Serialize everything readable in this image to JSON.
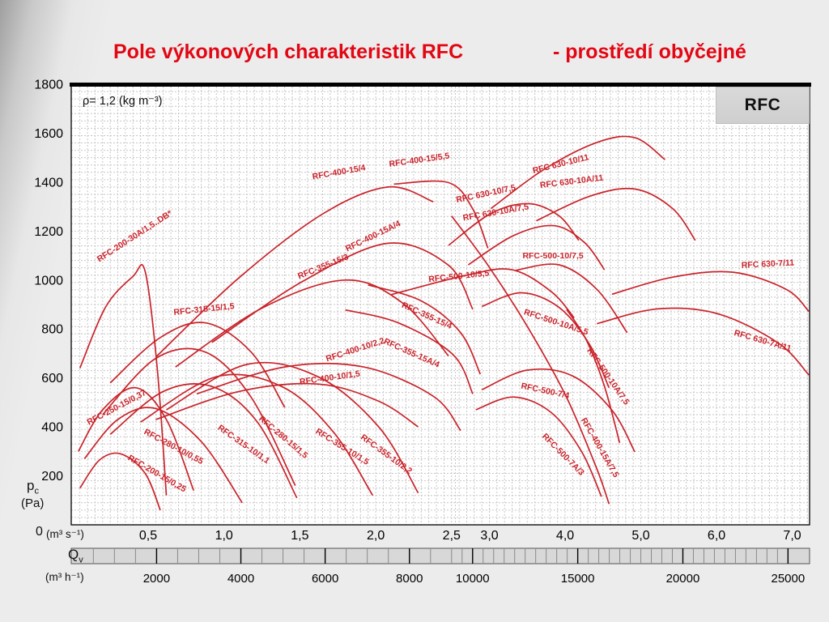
{
  "annotation": "ρ= 1,2 (kg m⁻³)",
  "badge": "RFC",
  "axes": {
    "x1_unit": "(m³ s⁻¹)",
    "x2_symbol": "Q",
    "x2_sub": "v",
    "x2_unit": "(m³ h⁻¹)",
    "y_symbol": "p",
    "y_sub": "c",
    "y_unit": "(Pa)",
    "y_zero": "0"
  },
  "colors": {
    "title": "#e30613",
    "curve": "#c9232a",
    "grid": "#c6c6c6",
    "band": "#d8d8d8"
  },
  "chart_data": {
    "type": "line",
    "title": "Pole výkonových charakteristik RFC",
    "subtitle": "- prostředí obyčejné",
    "ylabel": "pc (Pa)",
    "xlabel_primary": "Qv (m³ s⁻¹)",
    "xlabel_secondary": "Qv (m³ h⁻¹)",
    "ylim": [
      0,
      1800
    ],
    "xlim_m3s": [
      0,
      7.25
    ],
    "x_axis_note": "piecewise linear axis: 0-2,5 m³/s expanded scale, 2,5-7,0 m³/s half scale; grid dashed fine mesh; all curves red fan pressure characteristics",
    "y_ticks": [
      200,
      400,
      600,
      800,
      1000,
      1200,
      1400,
      1600,
      1800
    ],
    "x_ticks_m3s": [
      {
        "v": 0.5,
        "label": "0,5"
      },
      {
        "v": 1.0,
        "label": "1,0"
      },
      {
        "v": 1.5,
        "label": "1,5"
      },
      {
        "v": 2.0,
        "label": "2,0"
      },
      {
        "v": 2.5,
        "label": "2,5"
      },
      {
        "v": 3.0,
        "label": "3,0"
      },
      {
        "v": 4.0,
        "label": "4,0"
      },
      {
        "v": 5.0,
        "label": "5,0"
      },
      {
        "v": 6.0,
        "label": "6,0"
      },
      {
        "v": 7.0,
        "label": "7,0"
      }
    ],
    "x_ticks_m3h": [
      {
        "q": 2000,
        "label": "2000"
      },
      {
        "q": 4000,
        "label": "4000"
      },
      {
        "q": 6000,
        "label": "6000"
      },
      {
        "q": 8000,
        "label": "8000"
      },
      {
        "q": 10000,
        "label": "10000"
      },
      {
        "q": 15000,
        "label": "15000"
      },
      {
        "q": 20000,
        "label": "20000"
      },
      {
        "q": 25000,
        "label": "25000"
      }
    ],
    "series": [
      {
        "name": "RFC-200-15/0,25",
        "points": [
          [
            0.05,
            150
          ],
          [
            0.18,
            265
          ],
          [
            0.32,
            290
          ],
          [
            0.48,
            210
          ],
          [
            0.58,
            60
          ]
        ],
        "label": {
          "v": 0.55,
          "p": 200,
          "rot": 30
        }
      },
      {
        "name": "RFC-280-10/0,55",
        "points": [
          [
            0.08,
            270
          ],
          [
            0.3,
            430
          ],
          [
            0.55,
            475
          ],
          [
            0.85,
            340
          ],
          [
            1.12,
            90
          ]
        ],
        "label": {
          "v": 0.66,
          "p": 310,
          "rot": 28
        }
      },
      {
        "name": "RFC-250-15/0,37",
        "points": [
          [
            0.04,
            300
          ],
          [
            0.2,
            470
          ],
          [
            0.42,
            560
          ],
          [
            0.62,
            430
          ],
          [
            0.8,
            140
          ]
        ],
        "label": {
          "v": 0.3,
          "p": 470,
          "rot": -28
        }
      },
      {
        "name": "RFC-200-30A/1,5..DB*",
        "points": [
          [
            0.05,
            640
          ],
          [
            0.22,
            890
          ],
          [
            0.4,
            1015
          ],
          [
            0.48,
            1035
          ],
          [
            0.56,
            640
          ],
          [
            0.62,
            120
          ]
        ],
        "label": {
          "v": 0.42,
          "p": 1170,
          "rot": -33
        }
      },
      {
        "name": "RFC-315-10/1,1",
        "points": [
          [
            0.25,
            370
          ],
          [
            0.6,
            545
          ],
          [
            0.92,
            565
          ],
          [
            1.22,
            420
          ],
          [
            1.48,
            110
          ]
        ],
        "label": {
          "v": 1.12,
          "p": 320,
          "rot": 35
        }
      },
      {
        "name": "RFC-280-15/1,5",
        "points": [
          [
            0.2,
            450
          ],
          [
            0.55,
            680
          ],
          [
            0.88,
            705
          ],
          [
            1.18,
            520
          ],
          [
            1.47,
            160
          ]
        ],
        "label": {
          "v": 1.38,
          "p": 350,
          "rot": 40
        }
      },
      {
        "name": "RFC-355-10/1,5",
        "points": [
          [
            0.45,
            420
          ],
          [
            0.95,
            605
          ],
          [
            1.38,
            565
          ],
          [
            1.72,
            380
          ],
          [
            1.98,
            120
          ]
        ],
        "label": {
          "v": 1.77,
          "p": 310,
          "rot": 32
        }
      },
      {
        "name": "RFC-355-10/2,2",
        "points": [
          [
            0.62,
            470
          ],
          [
            1.15,
            655
          ],
          [
            1.62,
            605
          ],
          [
            2.02,
            400
          ],
          [
            2.28,
            130
          ]
        ],
        "label": {
          "v": 2.06,
          "p": 280,
          "rot": 36
        }
      },
      {
        "name": "RFC-400-10/1,5",
        "points": [
          [
            0.55,
            430
          ],
          [
            1.1,
            545
          ],
          [
            1.62,
            575
          ],
          [
            2.02,
            505
          ],
          [
            2.28,
            400
          ]
        ],
        "label": {
          "v": 1.7,
          "p": 590,
          "rot": -8
        }
      },
      {
        "name": "RFC-400-10/2,2",
        "points": [
          [
            0.82,
            535
          ],
          [
            1.4,
            645
          ],
          [
            1.92,
            645
          ],
          [
            2.38,
            525
          ],
          [
            2.62,
            385
          ]
        ],
        "label": {
          "v": 1.87,
          "p": 705,
          "rot": -18
        }
      },
      {
        "name": "RFC-315-15/1,5",
        "points": [
          [
            0.25,
            580
          ],
          [
            0.58,
            765
          ],
          [
            0.88,
            825
          ],
          [
            1.18,
            705
          ],
          [
            1.4,
            480
          ]
        ],
        "label": {
          "v": 0.87,
          "p": 870,
          "rot": -6
        }
      },
      {
        "name": "RFC-355-15/3",
        "points": [
          [
            0.68,
            645
          ],
          [
            1.25,
            885
          ],
          [
            1.8,
            1000
          ],
          [
            2.18,
            905
          ],
          [
            2.48,
            690
          ]
        ],
        "label": {
          "v": 1.66,
          "p": 1045,
          "rot": -22
        }
      },
      {
        "name": "RFC-400-15A/4",
        "points": [
          [
            0.92,
            745
          ],
          [
            1.52,
            995
          ],
          [
            2.08,
            1150
          ],
          [
            2.48,
            1060
          ],
          [
            2.78,
            880
          ]
        ],
        "label": {
          "v": 1.99,
          "p": 1170,
          "rot": -26
        }
      },
      {
        "name": "RFC-400-15/4",
        "points": [
          [
            0.55,
            685
          ],
          [
            1.1,
            1010
          ],
          [
            1.65,
            1270
          ],
          [
            2.08,
            1380
          ],
          [
            2.38,
            1320
          ]
        ],
        "label": {
          "v": 1.76,
          "p": 1430,
          "rot": -10
        }
      },
      {
        "name": "RFC-400-15/5,5",
        "points": [
          [
            2.12,
            1392
          ],
          [
            2.48,
            1398
          ],
          [
            2.78,
            1290
          ],
          [
            2.98,
            1130
          ]
        ],
        "label": {
          "v": 2.29,
          "p": 1480,
          "rot": -8
        }
      },
      {
        "name": "RFC-355-15/4",
        "points": [
          [
            1.95,
            980
          ],
          [
            2.3,
            915
          ],
          [
            2.62,
            785
          ],
          [
            2.88,
            615
          ]
        ],
        "label": {
          "v": 2.33,
          "p": 845,
          "rot": 24
        }
      },
      {
        "name": "RFC-355-15A/4",
        "points": [
          [
            1.8,
            878
          ],
          [
            2.15,
            825
          ],
          [
            2.52,
            695
          ],
          [
            2.78,
            535
          ]
        ],
        "label": {
          "v": 2.23,
          "p": 692,
          "rot": 24
        }
      },
      {
        "name": "RFC-500-10/5,5",
        "points": [
          [
            2.1,
            940
          ],
          [
            2.7,
            1020
          ],
          [
            3.3,
            1042
          ],
          [
            3.82,
            952
          ],
          [
            4.12,
            845
          ]
        ],
        "label": {
          "v": 2.6,
          "p": 1005,
          "rot": -6
        }
      },
      {
        "name": "RFC-500-10/7,5",
        "points": [
          [
            3.35,
            1040
          ],
          [
            3.92,
            1062
          ],
          [
            4.42,
            962
          ],
          [
            4.82,
            785
          ]
        ],
        "label": {
          "v": 3.84,
          "p": 1088,
          "rot": 0
        }
      },
      {
        "name": "RFC-500-10A/5,5",
        "points": [
          [
            2.9,
            892
          ],
          [
            3.42,
            948
          ],
          [
            3.92,
            888
          ],
          [
            4.32,
            738
          ],
          [
            4.58,
            560
          ]
        ],
        "label": {
          "v": 3.87,
          "p": 818,
          "rot": 18
        }
      },
      {
        "name": "RFC-500-10A/7,5",
        "points": [
          [
            4.02,
            880
          ],
          [
            4.28,
            755
          ],
          [
            4.52,
            565
          ],
          [
            4.72,
            335
          ]
        ],
        "label": {
          "v": 4.54,
          "p": 600,
          "rot": 55
        }
      },
      {
        "name": "RFC-500-7/4",
        "points": [
          [
            2.9,
            552
          ],
          [
            3.5,
            632
          ],
          [
            4.1,
            608
          ],
          [
            4.62,
            468
          ],
          [
            4.92,
            298
          ]
        ],
        "label": {
          "v": 3.73,
          "p": 537,
          "rot": 12
        }
      },
      {
        "name": "RFC-500-7A/3",
        "points": [
          [
            2.82,
            470
          ],
          [
            3.32,
            522
          ],
          [
            3.82,
            458
          ],
          [
            4.22,
            298
          ],
          [
            4.48,
            115
          ]
        ],
        "label": {
          "v": 3.95,
          "p": 280,
          "rot": 45
        }
      },
      {
        "name": "RFC-400-15A/7,5",
        "points": [
          [
            2.5,
            1262
          ],
          [
            3.0,
            1052
          ],
          [
            3.52,
            800
          ],
          [
            4.02,
            520
          ],
          [
            4.42,
            228
          ],
          [
            4.58,
            85
          ]
        ],
        "label": {
          "v": 4.43,
          "p": 310,
          "rot": 60
        }
      },
      {
        "name": "RFC 630-10/7,5",
        "points": [
          [
            2.48,
            1142
          ],
          [
            3.02,
            1272
          ],
          [
            3.52,
            1312
          ],
          [
            3.92,
            1262
          ],
          [
            4.18,
            1162
          ]
        ],
        "label": {
          "v": 2.96,
          "p": 1342,
          "rot": -12
        }
      },
      {
        "name": "RFC 630-10/11",
        "points": [
          [
            3.02,
            1292
          ],
          [
            3.72,
            1452
          ],
          [
            4.42,
            1562
          ],
          [
            4.92,
            1582
          ],
          [
            5.32,
            1492
          ]
        ],
        "label": {
          "v": 3.95,
          "p": 1464,
          "rot": -14
        }
      },
      {
        "name": "RFC 630-10A/7,5",
        "points": [
          [
            2.72,
            1062
          ],
          [
            3.32,
            1182
          ],
          [
            3.86,
            1222
          ],
          [
            4.26,
            1152
          ],
          [
            4.52,
            1042
          ]
        ],
        "label": {
          "v": 3.09,
          "p": 1266,
          "rot": -10
        }
      },
      {
        "name": "RFC 630-10A/11",
        "points": [
          [
            3.62,
            1242
          ],
          [
            4.32,
            1342
          ],
          [
            4.92,
            1372
          ],
          [
            5.42,
            1292
          ],
          [
            5.72,
            1162
          ]
        ],
        "label": {
          "v": 4.09,
          "p": 1392,
          "rot": -7
        }
      },
      {
        "name": "RFC 630-7/11",
        "points": [
          [
            4.62,
            942
          ],
          [
            5.42,
            1012
          ],
          [
            6.22,
            1032
          ],
          [
            6.92,
            962
          ],
          [
            7.22,
            872
          ]
        ],
        "label": {
          "v": 6.68,
          "p": 1055,
          "rot": -3
        }
      },
      {
        "name": "RFC 630-7A/11",
        "points": [
          [
            4.42,
            822
          ],
          [
            5.22,
            882
          ],
          [
            6.02,
            862
          ],
          [
            6.82,
            742
          ],
          [
            7.22,
            612
          ]
        ],
        "label": {
          "v": 6.6,
          "p": 742,
          "rot": 16
        }
      }
    ]
  }
}
